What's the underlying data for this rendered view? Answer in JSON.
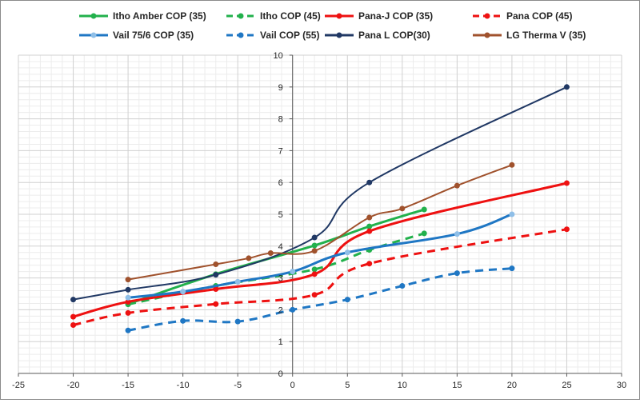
{
  "chart_data": {
    "type": "line",
    "title": "",
    "xlabel": "",
    "ylabel": "",
    "xlim": [
      -25,
      30
    ],
    "ylim": [
      0,
      10
    ],
    "x_ticks": [
      "-25",
      "-20",
      "-15",
      "-10",
      "-5",
      "0",
      "5",
      "10",
      "15",
      "20",
      "25",
      "30"
    ],
    "y_ticks": [
      "0",
      "1",
      "2",
      "3",
      "4",
      "5",
      "6",
      "7",
      "8",
      "9",
      "10"
    ],
    "grid": true,
    "minor_grid": true,
    "legend_position": "top",
    "series": [
      {
        "name": "Itho Amber COP (35)",
        "color": "#22b14c",
        "dash": false,
        "points": [
          [
            -15,
            2.18
          ],
          [
            -7,
            3.12
          ],
          [
            2,
            4.02
          ],
          [
            7,
            4.62
          ],
          [
            12,
            5.15
          ]
        ]
      },
      {
        "name": "Itho COP (45)",
        "color": "#22b14c",
        "dash": true,
        "points": [
          [
            -15,
            2.17
          ],
          [
            -7,
            2.75
          ],
          [
            2,
            3.27
          ],
          [
            7,
            3.88
          ],
          [
            12,
            4.4
          ]
        ]
      },
      {
        "name": "Pana-J COP (35)",
        "color": "#ee1111",
        "dash": false,
        "points": [
          [
            -20,
            1.78
          ],
          [
            -15,
            2.25
          ],
          [
            -7,
            2.65
          ],
          [
            2,
            3.12
          ],
          [
            7,
            4.47
          ],
          [
            25,
            5.98
          ]
        ]
      },
      {
        "name": "Pana COP (45)",
        "color": "#ee1111",
        "dash": true,
        "points": [
          [
            -20,
            1.52
          ],
          [
            -15,
            1.9
          ],
          [
            -7,
            2.18
          ],
          [
            2,
            2.47
          ],
          [
            7,
            3.45
          ],
          [
            25,
            4.53
          ]
        ]
      },
      {
        "name": "Vail 75/6 COP (35)",
        "color": "#1f77c4",
        "marker_color": "#8fbfe8",
        "dash": false,
        "points": [
          [
            -15,
            2.38
          ],
          [
            -10,
            2.57
          ],
          [
            -5,
            2.88
          ],
          [
            0,
            3.2
          ],
          [
            5,
            3.8
          ],
          [
            15,
            4.38
          ],
          [
            20,
            5.0
          ]
        ]
      },
      {
        "name": "Vail COP (55)",
        "color": "#1f77c4",
        "dash": true,
        "points": [
          [
            -15,
            1.35
          ],
          [
            -10,
            1.65
          ],
          [
            -5,
            1.63
          ],
          [
            0,
            2.0
          ],
          [
            5,
            2.32
          ],
          [
            10,
            2.75
          ],
          [
            15,
            3.15
          ],
          [
            20,
            3.3
          ]
        ]
      },
      {
        "name": "Pana L COP(30)",
        "color": "#203864",
        "dash": false,
        "points": [
          [
            -20,
            2.32
          ],
          [
            -15,
            2.63
          ],
          [
            -7,
            3.1
          ],
          [
            2,
            4.27
          ],
          [
            7,
            6.0
          ],
          [
            25,
            9.0
          ]
        ]
      },
      {
        "name": "LG Therma V (35)",
        "color": "#a0522d",
        "dash": false,
        "points": [
          [
            -15,
            2.95
          ],
          [
            -7,
            3.43
          ],
          [
            -4,
            3.62
          ],
          [
            -2,
            3.78
          ],
          [
            2,
            3.85
          ],
          [
            7,
            4.9
          ],
          [
            10,
            5.18
          ],
          [
            15,
            5.9
          ],
          [
            20,
            6.55
          ]
        ]
      }
    ]
  }
}
